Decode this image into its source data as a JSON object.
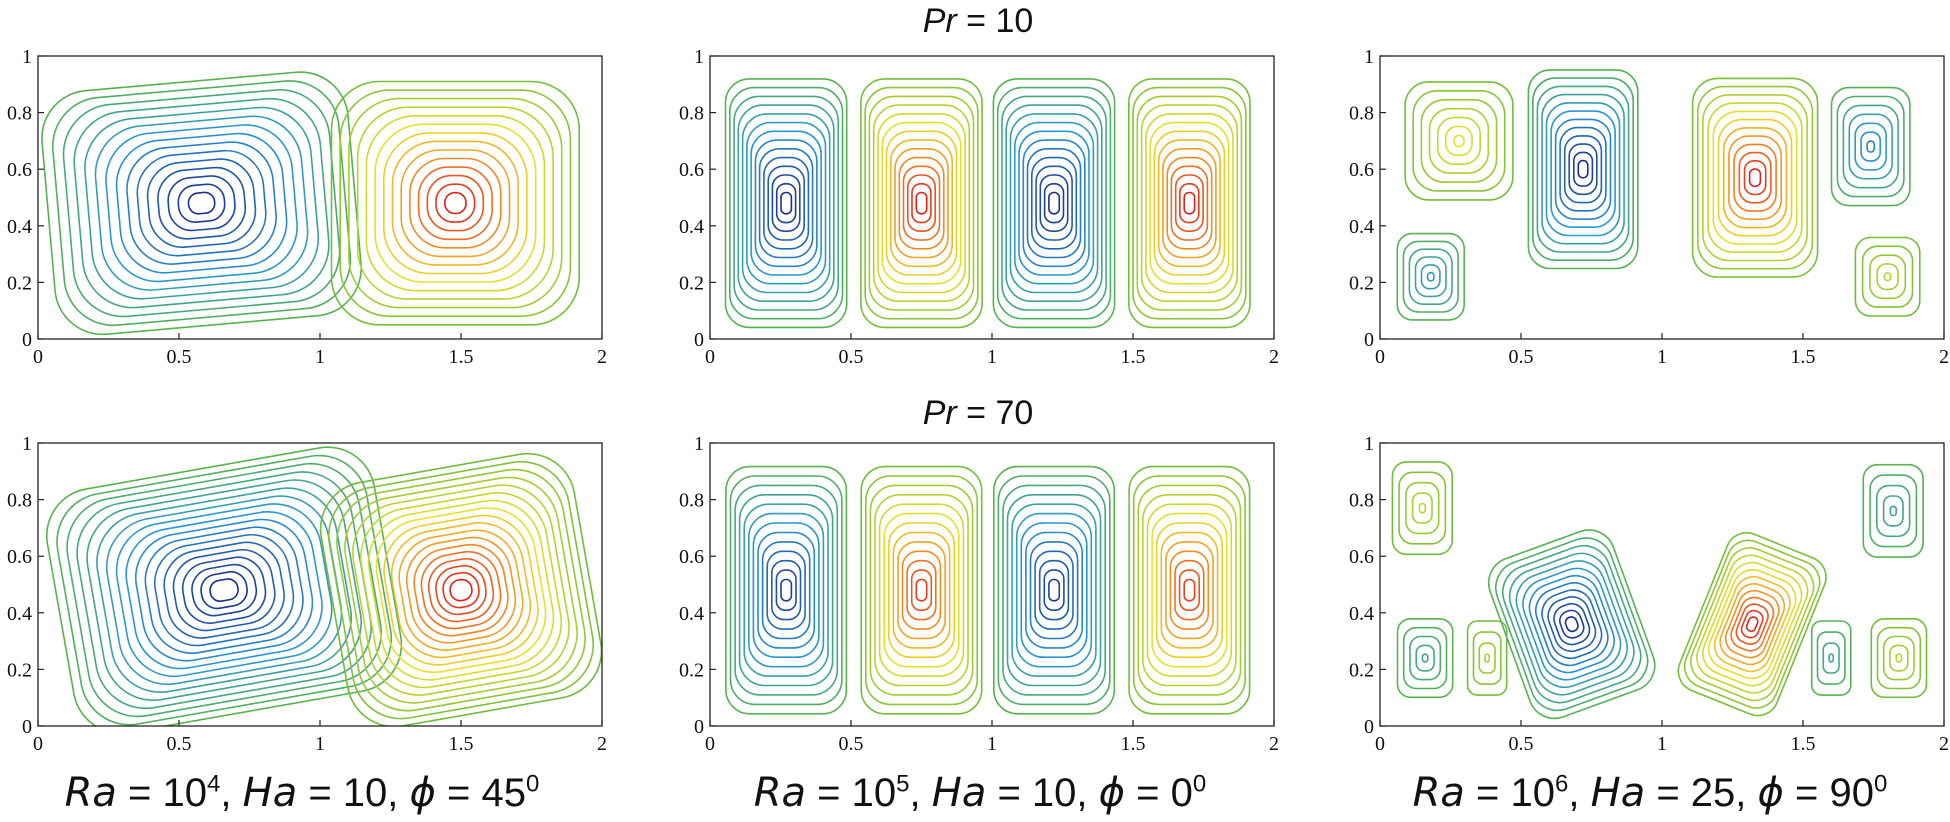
{
  "figure": {
    "row_titles": [
      {
        "label": "Pr",
        "value": "10"
      },
      {
        "label": "Pr",
        "value": "70"
      }
    ],
    "column_captions": [
      {
        "ra_label": "Ra",
        "ra_base": "10",
        "ra_exp": "4",
        "ha_label": "Ha",
        "ha_value": "10",
        "phi_label": "ϕ",
        "phi_value": "45",
        "phi_unit": "0"
      },
      {
        "ra_label": "Ra",
        "ra_base": "10",
        "ra_exp": "5",
        "ha_label": "Ha",
        "ha_value": "10",
        "phi_label": "ϕ",
        "phi_value": "0",
        "phi_unit": "0"
      },
      {
        "ra_label": "Ra",
        "ra_base": "10",
        "ra_exp": "6",
        "ha_label": "Ha",
        "ha_value": "25",
        "phi_label": "ϕ",
        "phi_value": "90",
        "phi_unit": "0"
      }
    ]
  },
  "colors": {
    "ccw_core": "#1a2f8c",
    "neutral": "#5cb83a",
    "cw_core": "#e0201c",
    "axis": "#222222"
  },
  "chart_data": [
    {
      "type": "contour",
      "panel": "Pr = 10, Ra = 10^4, Ha = 10, phi = 45",
      "xlim": [
        0,
        2
      ],
      "ylim": [
        0,
        1
      ],
      "xticks": [
        "0",
        "0.5",
        "1",
        "1.5",
        "2"
      ],
      "yticks": [
        "0",
        "0.2",
        "0.4",
        "0.6",
        "0.8",
        "1"
      ],
      "cells": [
        {
          "cx": 0.58,
          "cy": 0.48,
          "rx": 0.58,
          "ry": 0.46,
          "rot": -5,
          "sign": -1,
          "strength": 1.0,
          "levels": 15
        },
        {
          "cx": 1.48,
          "cy": 0.48,
          "rx": 0.47,
          "ry": 0.46,
          "rot": 0,
          "sign": 1,
          "strength": 1.0,
          "levels": 14
        }
      ]
    },
    {
      "type": "contour",
      "panel": "Pr = 10, Ra = 10^5, Ha = 10, phi = 0",
      "xlim": [
        0,
        2
      ],
      "ylim": [
        0,
        1
      ],
      "xticks": [
        "0",
        "0.5",
        "1",
        "1.5",
        "2"
      ],
      "yticks": [
        "0",
        "0.2",
        "0.4",
        "0.6",
        "0.8",
        "1"
      ],
      "cells": [
        {
          "cx": 0.27,
          "cy": 0.48,
          "rx": 0.23,
          "ry": 0.47,
          "rot": 0,
          "sign": -1,
          "strength": 1.0,
          "levels": 14
        },
        {
          "cx": 0.75,
          "cy": 0.48,
          "rx": 0.23,
          "ry": 0.47,
          "rot": 0,
          "sign": 1,
          "strength": 1.0,
          "levels": 14
        },
        {
          "cx": 1.22,
          "cy": 0.48,
          "rx": 0.23,
          "ry": 0.47,
          "rot": 0,
          "sign": -1,
          "strength": 1.0,
          "levels": 14
        },
        {
          "cx": 1.7,
          "cy": 0.48,
          "rx": 0.23,
          "ry": 0.47,
          "rot": 0,
          "sign": 1,
          "strength": 1.0,
          "levels": 14
        }
      ]
    },
    {
      "type": "contour",
      "panel": "Pr = 10, Ra = 10^6, Ha = 25, phi = 90",
      "xlim": [
        0,
        2
      ],
      "ylim": [
        0,
        1
      ],
      "xticks": [
        "0",
        "0.5",
        "1",
        "1.5",
        "2"
      ],
      "yticks": [
        "0",
        "0.2",
        "0.4",
        "0.6",
        "0.8",
        "1"
      ],
      "cells": [
        {
          "cx": 0.28,
          "cy": 0.7,
          "rx": 0.22,
          "ry": 0.24,
          "rot": 0,
          "sign": 1,
          "strength": 0.45,
          "levels": 7
        },
        {
          "cx": 0.18,
          "cy": 0.22,
          "rx": 0.14,
          "ry": 0.18,
          "rot": 0,
          "sign": -1,
          "strength": 0.45,
          "levels": 6
        },
        {
          "cx": 0.72,
          "cy": 0.6,
          "rx": 0.21,
          "ry": 0.38,
          "rot": 0,
          "sign": -1,
          "strength": 1.0,
          "levels": 12
        },
        {
          "cx": 1.33,
          "cy": 0.57,
          "rx": 0.24,
          "ry": 0.38,
          "rot": 0,
          "sign": 1,
          "strength": 1.0,
          "levels": 12
        },
        {
          "cx": 1.74,
          "cy": 0.68,
          "rx": 0.16,
          "ry": 0.24,
          "rot": 0,
          "sign": -1,
          "strength": 0.6,
          "levels": 7
        },
        {
          "cx": 1.8,
          "cy": 0.22,
          "rx": 0.14,
          "ry": 0.17,
          "rot": 0,
          "sign": 1,
          "strength": 0.3,
          "levels": 5
        }
      ]
    },
    {
      "type": "contour",
      "panel": "Pr = 70, Ra = 10^4, Ha = 10, phi = 45",
      "xlim": [
        0,
        2
      ],
      "ylim": [
        0,
        1
      ],
      "xticks": [
        "0",
        "0.5",
        "1",
        "1.5",
        "2"
      ],
      "yticks": [
        "0",
        "0.2",
        "0.4",
        "0.6",
        "0.8",
        "1"
      ],
      "cells": [
        {
          "cx": 0.66,
          "cy": 0.48,
          "rx": 0.62,
          "ry": 0.46,
          "rot": -10,
          "sign": -1,
          "strength": 1.0,
          "levels": 18
        },
        {
          "cx": 1.5,
          "cy": 0.48,
          "rx": 0.48,
          "ry": 0.46,
          "rot": -10,
          "sign": 1,
          "strength": 1.0,
          "levels": 18
        }
      ]
    },
    {
      "type": "contour",
      "panel": "Pr = 70, Ra = 10^5, Ha = 10, phi = 0",
      "xlim": [
        0,
        2
      ],
      "ylim": [
        0,
        1
      ],
      "xticks": [
        "0",
        "0.5",
        "1",
        "1.5",
        "2"
      ],
      "yticks": [
        "0",
        "0.2",
        "0.4",
        "0.6",
        "0.8",
        "1"
      ],
      "cells": [
        {
          "cx": 0.27,
          "cy": 0.48,
          "rx": 0.23,
          "ry": 0.47,
          "rot": 0,
          "sign": -1,
          "strength": 0.92,
          "levels": 13
        },
        {
          "cx": 0.75,
          "cy": 0.48,
          "rx": 0.23,
          "ry": 0.47,
          "rot": 0,
          "sign": 1,
          "strength": 0.92,
          "levels": 13
        },
        {
          "cx": 1.22,
          "cy": 0.48,
          "rx": 0.23,
          "ry": 0.47,
          "rot": 0,
          "sign": -1,
          "strength": 0.92,
          "levels": 13
        },
        {
          "cx": 1.7,
          "cy": 0.48,
          "rx": 0.23,
          "ry": 0.47,
          "rot": 0,
          "sign": 1,
          "strength": 0.92,
          "levels": 13
        }
      ]
    },
    {
      "type": "contour",
      "panel": "Pr = 70, Ra = 10^6, Ha = 25, phi = 90",
      "xlim": [
        0,
        2
      ],
      "ylim": [
        0,
        1
      ],
      "xticks": [
        "0",
        "0.5",
        "1",
        "1.5",
        "2"
      ],
      "yticks": [
        "0",
        "0.2",
        "0.4",
        "0.6",
        "0.8",
        "1"
      ],
      "cells": [
        {
          "cx": 0.15,
          "cy": 0.77,
          "rx": 0.13,
          "ry": 0.2,
          "rot": 0,
          "sign": 1,
          "strength": 0.3,
          "levels": 5
        },
        {
          "cx": 0.16,
          "cy": 0.24,
          "rx": 0.12,
          "ry": 0.17,
          "rot": 0,
          "sign": -1,
          "strength": 0.3,
          "levels": 5
        },
        {
          "cx": 0.38,
          "cy": 0.24,
          "rx": 0.09,
          "ry": 0.17,
          "rot": 0,
          "sign": 1,
          "strength": 0.25,
          "levels": 4
        },
        {
          "cx": 0.68,
          "cy": 0.36,
          "rx": 0.25,
          "ry": 0.32,
          "rot": -20,
          "sign": -1,
          "strength": 1.0,
          "levels": 13
        },
        {
          "cx": 1.32,
          "cy": 0.36,
          "rx": 0.2,
          "ry": 0.32,
          "rot": 22,
          "sign": 1,
          "strength": 1.0,
          "levels": 13
        },
        {
          "cx": 1.6,
          "cy": 0.24,
          "rx": 0.09,
          "ry": 0.17,
          "rot": 0,
          "sign": -1,
          "strength": 0.3,
          "levels": 4
        },
        {
          "cx": 1.82,
          "cy": 0.76,
          "rx": 0.13,
          "ry": 0.2,
          "rot": 0,
          "sign": -1,
          "strength": 0.35,
          "levels": 5
        },
        {
          "cx": 1.84,
          "cy": 0.24,
          "rx": 0.12,
          "ry": 0.17,
          "rot": 0,
          "sign": 1,
          "strength": 0.3,
          "levels": 5
        }
      ]
    }
  ]
}
